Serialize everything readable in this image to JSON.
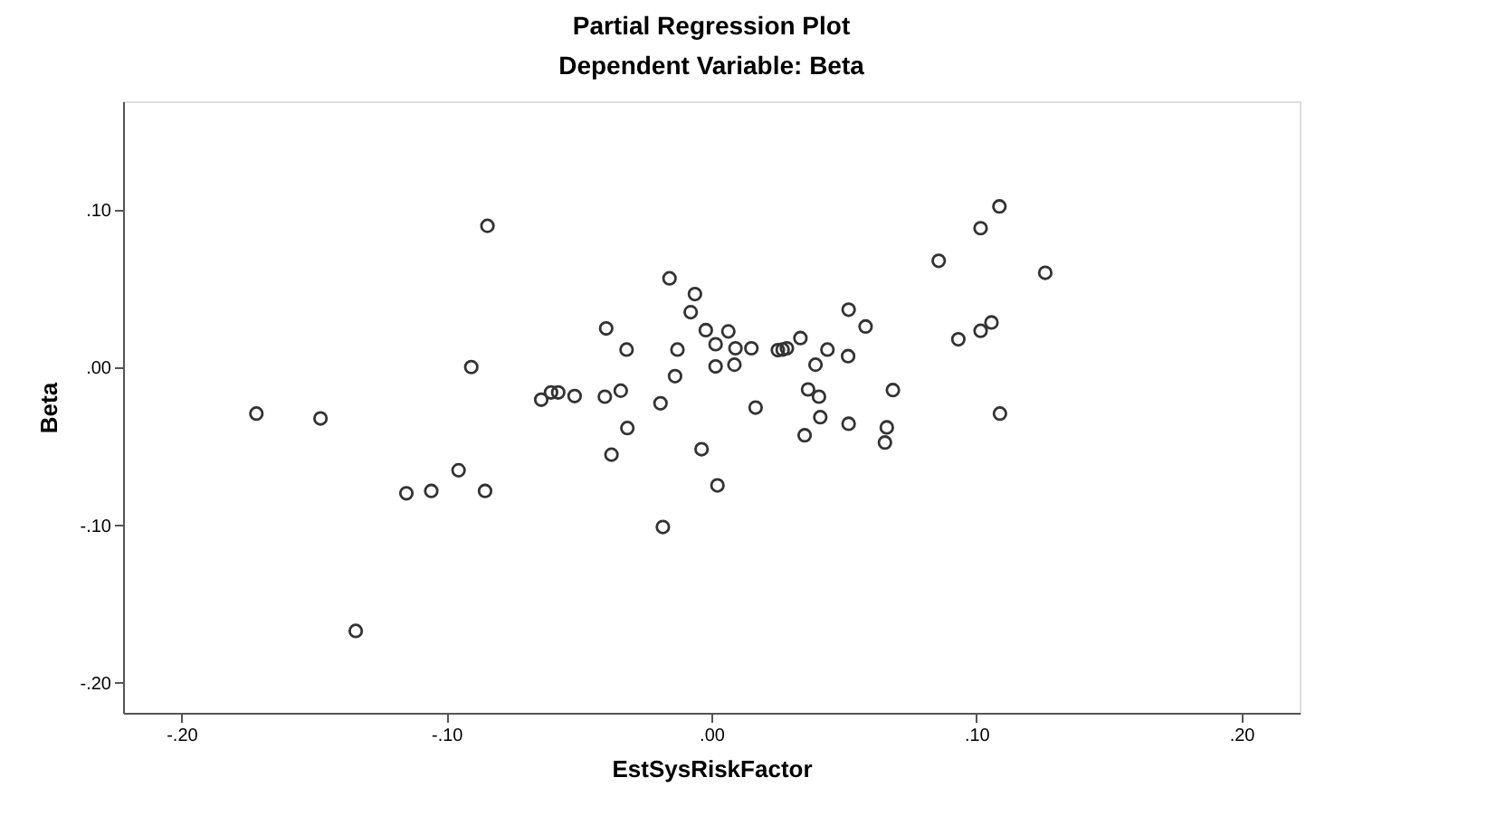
{
  "chart_data": {
    "type": "scatter",
    "title": "Partial Regression Plot",
    "subtitle": "Dependent Variable: Beta",
    "xlabel": "EstSysRiskFactor",
    "ylabel": "Beta",
    "x": [
      -0.0845,
      -0.0158,
      -0.0062,
      -0.0078,
      -0.0397,
      -0.0021,
      0.0064,
      -0.032,
      -0.0128,
      0.0016,
      0.0091,
      0.0087,
      0.0016,
      -0.0906,
      -0.0137,
      -0.1717,
      -0.1475,
      -0.0642,
      -0.0605,
      -0.0578,
      -0.0516,
      -0.0402,
      -0.0342,
      -0.0192,
      -0.0317,
      -0.0377,
      -0.0037,
      0.0023,
      -0.0954,
      -0.1151,
      -0.1057,
      -0.0854,
      -0.0183,
      -0.1342,
      0.0151,
      0.0251,
      0.0269,
      0.0285,
      0.0336,
      0.0438,
      0.0393,
      0.0516,
      0.0518,
      0.0582,
      0.0365,
      0.0406,
      0.0411,
      0.0352,
      0.0518,
      0.0167,
      0.0662,
      0.0655,
      0.0685,
      0.0858,
      0.1016,
      0.1087,
      0.126,
      0.0932,
      0.1016,
      0.1057,
      0.1089
    ],
    "values": [
      0.09,
      0.0567,
      0.0467,
      0.0352,
      0.0249,
      0.0238,
      0.023,
      0.0115,
      0.0115,
      0.0149,
      0.0123,
      0.0019,
      0.0008,
      0.0004,
      -0.0054,
      -0.0291,
      -0.0322,
      -0.0203,
      -0.0157,
      -0.0157,
      -0.018,
      -0.0184,
      -0.0146,
      -0.0226,
      -0.0383,
      -0.0552,
      -0.0517,
      -0.0747,
      -0.0651,
      -0.0797,
      -0.0782,
      -0.0782,
      -0.1011,
      -0.167,
      0.0123,
      0.0111,
      0.0115,
      0.0123,
      0.0188,
      0.0115,
      0.0019,
      0.0073,
      0.0368,
      0.0261,
      -0.0138,
      -0.0184,
      -0.0314,
      -0.0429,
      -0.0356,
      -0.0253,
      -0.0379,
      -0.0475,
      -0.0142,
      0.0678,
      0.0885,
      0.1023,
      0.0602,
      0.018,
      0.0234,
      0.0287,
      -0.0291
    ],
    "color": "#333333",
    "marker": "circle",
    "grid": false,
    "xlim": [
      -0.222,
      0.222
    ],
    "ylim": [
      -0.219,
      0.169
    ],
    "xticks": [
      {
        "value": -0.2,
        "label": "-.20"
      },
      {
        "value": -0.1,
        "label": "-.10"
      },
      {
        "value": 0,
        "label": ".00"
      },
      {
        "value": 0.1,
        "label": ".10"
      },
      {
        "value": 0.2,
        "label": ".20"
      }
    ],
    "yticks": [
      {
        "value": -0.2,
        "label": "-.20"
      },
      {
        "value": -0.1,
        "label": "-.10"
      },
      {
        "value": 0,
        "label": ".00"
      },
      {
        "value": 0.1,
        "label": ".10"
      }
    ]
  }
}
